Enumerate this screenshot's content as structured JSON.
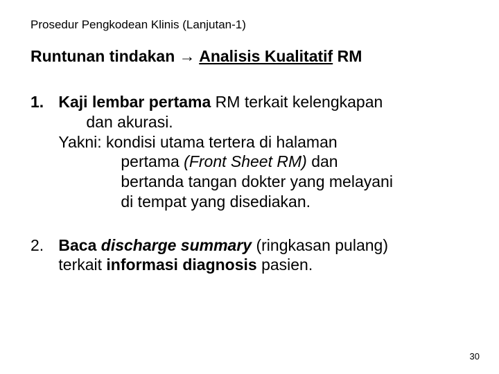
{
  "header": "Prosedur Pengkodean Klinis (Lanjutan-1)",
  "subtitle": {
    "part1": "Runtunan tindakan ",
    "arrow": "→",
    "space": " ",
    "part2": "Analisis Kualitatif",
    "part3": " RM"
  },
  "item1": {
    "num": "1.",
    "l1a": "Kaji lembar pertama",
    "l1b": " RM terkait kelengkapan",
    "l2": "dan akurasi.",
    "l3": "Yakni: kondisi utama tertera di halaman",
    "l4a": "pertama ",
    "l4b": "(Front Sheet RM)",
    "l4c": " dan",
    "l5": "bertanda tangan dokter yang melayani",
    "l6": "di tempat yang disediakan."
  },
  "item2": {
    "num": "2.",
    "l1a": "Baca ",
    "l1b": "discharge summary",
    "l1c": " (ringkasan pulang)",
    "l2a": "terkait ",
    "l2b": "informasi diagnosis",
    "l2c": " pasien."
  },
  "pagenum": "30"
}
